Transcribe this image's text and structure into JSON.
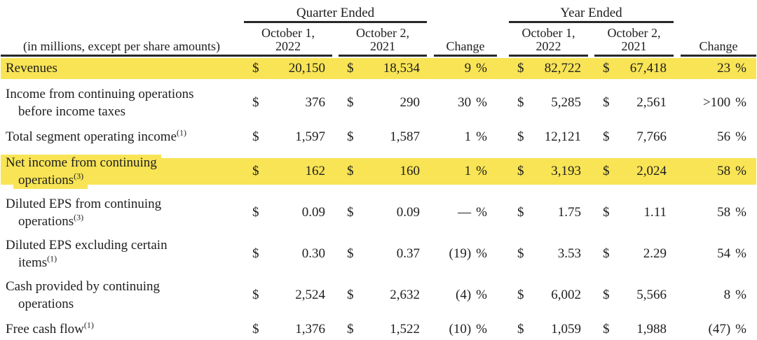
{
  "table": {
    "currency": "$",
    "percent": "%",
    "highlight_color": "#f8e455",
    "header": {
      "note": "(in millions, except per share amounts)",
      "groups": [
        {
          "label": "Quarter Ended"
        },
        {
          "label": "Year Ended"
        }
      ],
      "columns": [
        {
          "line1": "October 1,",
          "line2": "2022"
        },
        {
          "line1": "October 2,",
          "line2": "2021"
        },
        {
          "label": "Change"
        },
        {
          "line1": "October 1,",
          "line2": "2022"
        },
        {
          "line1": "October 2,",
          "line2": "2021"
        },
        {
          "label": "Change"
        }
      ]
    },
    "rows": [
      {
        "label_lines": [
          "Revenues"
        ],
        "sup": "",
        "highlight": "full",
        "values": {
          "q1": "20,150",
          "q2": "18,534",
          "qc": "9",
          "y1": "82,722",
          "y2": "67,418",
          "yc": "23"
        }
      },
      {
        "label_lines": [
          "Income from continuing operations",
          "before income taxes"
        ],
        "sup": "",
        "highlight": "",
        "values": {
          "q1": "376",
          "q2": "290",
          "qc": "30",
          "y1": "5,285",
          "y2": "2,561",
          "yc": ">100"
        }
      },
      {
        "label_lines": [
          "Total segment operating income"
        ],
        "sup": "(1)",
        "highlight": "",
        "values": {
          "q1": "1,597",
          "q2": "1,587",
          "qc": "1",
          "y1": "12,121",
          "y2": "7,766",
          "yc": "56"
        }
      },
      {
        "label_lines": [
          "Net income from continuing",
          "operations"
        ],
        "sup": "(3)",
        "highlight": "band",
        "values": {
          "q1": "162",
          "q2": "160",
          "qc": "1",
          "y1": "3,193",
          "y2": "2,024",
          "yc": "58"
        }
      },
      {
        "label_lines": [
          "Diluted EPS from continuing",
          "operations"
        ],
        "sup": "(3)",
        "highlight": "",
        "values": {
          "q1": "0.09",
          "q2": "0.09",
          "qc": "—",
          "y1": "1.75",
          "y2": "1.11",
          "yc": "58"
        }
      },
      {
        "label_lines": [
          "Diluted EPS excluding certain",
          "items"
        ],
        "sup": "(1)",
        "highlight": "",
        "values": {
          "q1": "0.30",
          "q2": "0.37",
          "qc": "(19)",
          "y1": "3.53",
          "y2": "2.29",
          "yc": "54"
        }
      },
      {
        "label_lines": [
          "Cash provided by continuing",
          "operations"
        ],
        "sup": "",
        "highlight": "",
        "values": {
          "q1": "2,524",
          "q2": "2,632",
          "qc": "(4)",
          "y1": "6,002",
          "y2": "5,566",
          "yc": "8"
        }
      },
      {
        "label_lines": [
          "Free cash flow"
        ],
        "sup": "(1)",
        "highlight": "",
        "values": {
          "q1": "1,376",
          "q2": "1,522",
          "qc": "(10)",
          "y1": "1,059",
          "y2": "1,988",
          "yc": "(47)"
        }
      }
    ]
  }
}
